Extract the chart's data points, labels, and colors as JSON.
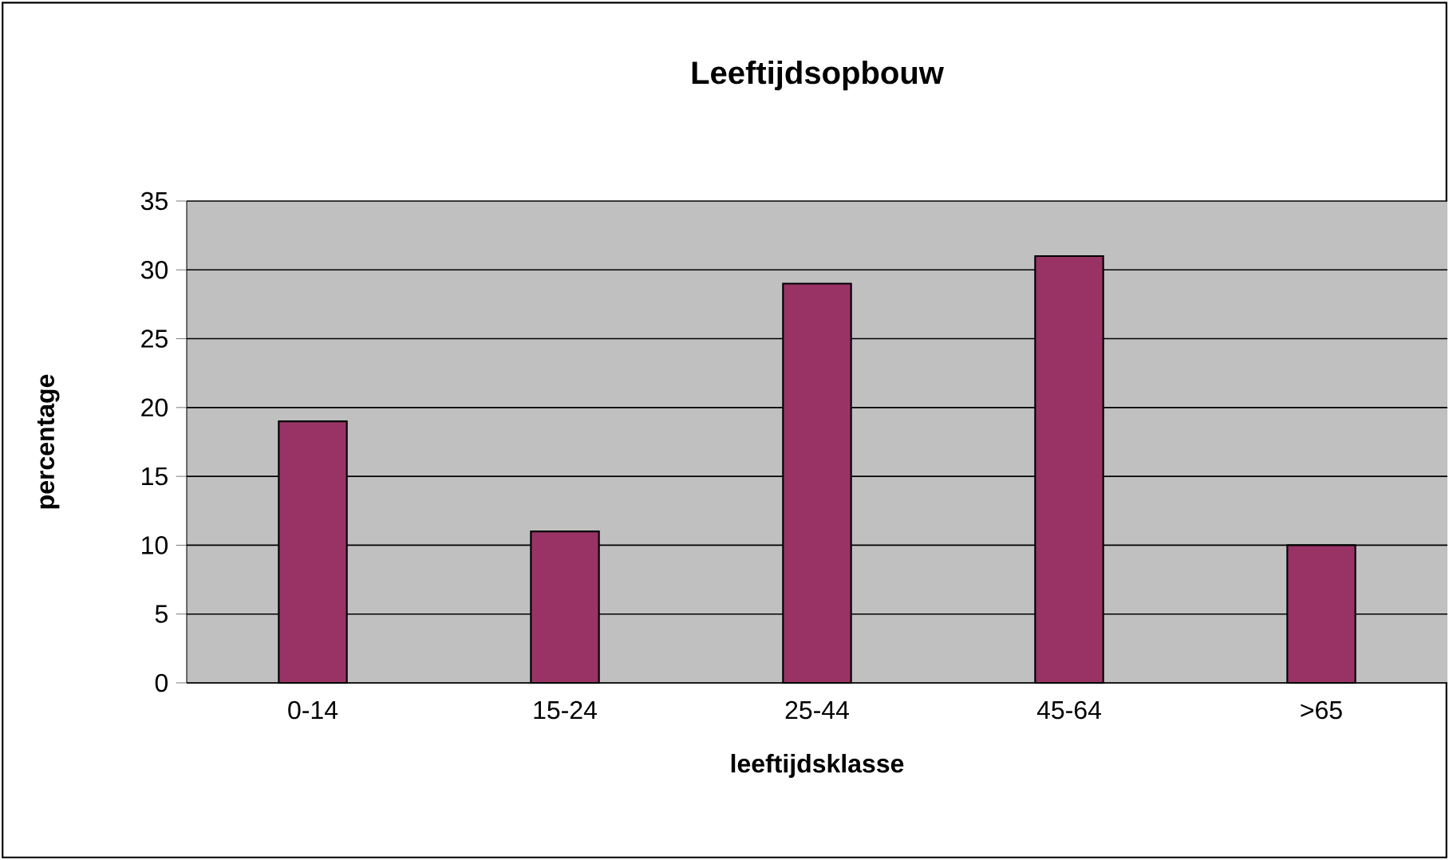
{
  "chart_data": {
    "type": "bar",
    "title": "Leeftijdsopbouw",
    "xlabel": "leeftijdsklasse",
    "ylabel": "percentage",
    "categories": [
      "0-14",
      "15-24",
      "25-44",
      "45-64",
      ">65"
    ],
    "values": [
      19,
      11,
      29,
      31,
      10
    ],
    "color": "#993366",
    "ylim": [
      0,
      35
    ],
    "yticks": [
      0,
      5,
      10,
      15,
      20,
      25,
      30,
      35
    ],
    "grid": "y",
    "legend": false
  }
}
